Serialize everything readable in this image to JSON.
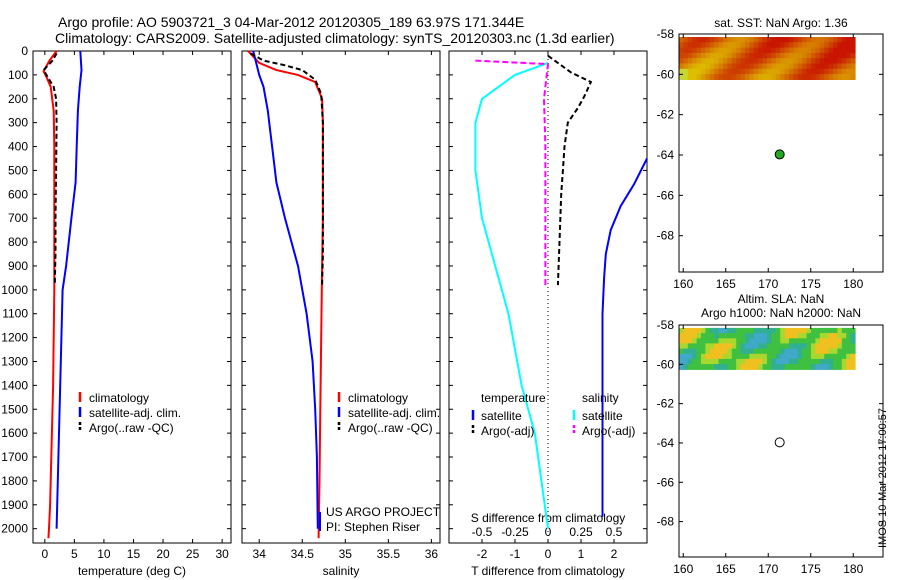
{
  "title_line1": "Argo profile: AO 5903721_3 04-Mar-2012 20120305_189 63.97S 171.344E",
  "title_line2": "Climatology: CARS2009. Satellite-adjusted climatology: synTS_20120303.nc (1.3d earlier)",
  "timestamp": "IMOS 10-Mar-2012 17:00:57",
  "colors": {
    "climatology": "#ff0000",
    "satellite": "#0000ff",
    "argo": "#000000",
    "sal_satellite": "#00ffff",
    "sal_argo": "#ff00ff"
  },
  "chart_data": [
    {
      "type": "line",
      "xlabel": "temperature (deg C)",
      "ylabel": "",
      "xlim": [
        -2,
        31.5
      ],
      "ylim": [
        2060,
        0
      ],
      "xticks": [
        "0",
        "5",
        "10",
        "15",
        "20",
        "25",
        "30"
      ],
      "yticks": [
        "0",
        "100",
        "200",
        "300",
        "400",
        "500",
        "600",
        "700",
        "800",
        "900",
        "1000",
        "1100",
        "1200",
        "1300",
        "1400",
        "1500",
        "1600",
        "1700",
        "1800",
        "1900",
        "2000"
      ],
      "legend": [
        "climatology",
        "satellite-adj. clim.",
        "Argo(..raw -QC)"
      ],
      "legend_placement": "lower-center",
      "series": [
        {
          "name": "climatology",
          "x": [
            2.0,
            0.8,
            -0.2,
            0.3,
            1.0,
            1.5,
            1.6,
            1.6,
            1.6,
            1.6,
            1.6,
            1.5,
            1.4,
            1.3,
            1.2,
            1.1,
            1.0,
            0.9,
            0.7,
            0.6
          ],
          "y": [
            0,
            40,
            85,
            110,
            150,
            250,
            400,
            600,
            800,
            900,
            1000,
            1200,
            1400,
            1500,
            1600,
            1700,
            1800,
            1900,
            2000,
            2040
          ]
        },
        {
          "name": "satellite-adj. clim.",
          "x": [
            6.0,
            6.2,
            5.9,
            5.6,
            5.4,
            5.2,
            4.5,
            3.6,
            3.0,
            2.8,
            2.6,
            2.4,
            2.3,
            2.2,
            2.1,
            2.0
          ],
          "y": [
            0,
            80,
            150,
            250,
            400,
            550,
            700,
            900,
            1000,
            1200,
            1400,
            1600,
            1700,
            1800,
            1900,
            2000
          ]
        },
        {
          "name": "Argo(..raw -QC)",
          "x": [
            2.0,
            1.3,
            -0.2,
            0.5,
            1.5,
            1.9,
            2.0,
            1.9,
            1.8,
            1.8,
            1.7,
            1.7
          ],
          "y": [
            10,
            40,
            80,
            110,
            150,
            200,
            300,
            500,
            700,
            850,
            950,
            980
          ]
        }
      ]
    },
    {
      "type": "line",
      "xlabel": "salinity",
      "ylabel": "",
      "xlim": [
        33.8,
        36.1
      ],
      "ylim": [
        2060,
        0
      ],
      "xticks": [
        "34",
        "34.5",
        "35",
        "35.5",
        "36"
      ],
      "legend": [
        "climatology",
        "satellite-adj. clim.",
        "Argo(..raw -QC)"
      ],
      "legend_placement": "lower-right",
      "annotations": [
        "US ARGO PROJECT",
        "PI: Stephen Riser"
      ],
      "series": [
        {
          "name": "climatology",
          "x": [
            33.87,
            34.0,
            34.2,
            34.45,
            34.65,
            34.73,
            34.74,
            34.74,
            34.74,
            34.73,
            34.72,
            34.71,
            34.7,
            34.69
          ],
          "y": [
            0,
            50,
            80,
            100,
            130,
            200,
            300,
            500,
            700,
            900,
            1200,
            1500,
            1800,
            2040
          ]
        },
        {
          "name": "satellite-adj. clim.",
          "x": [
            33.93,
            34.0,
            34.05,
            34.1,
            34.15,
            34.2,
            34.3,
            34.45,
            34.55,
            34.62,
            34.65,
            34.67,
            34.68
          ],
          "y": [
            0,
            100,
            150,
            250,
            400,
            550,
            700,
            900,
            1100,
            1300,
            1500,
            1700,
            2000
          ]
        },
        {
          "name": "Argo(..raw -QC)",
          "x": [
            33.9,
            34.05,
            34.3,
            34.5,
            34.65,
            34.72,
            34.74,
            34.74,
            34.74,
            34.73
          ],
          "y": [
            10,
            40,
            60,
            80,
            120,
            180,
            300,
            600,
            850,
            980
          ]
        }
      ]
    },
    {
      "type": "line",
      "xlabel": "T difference from climatology",
      "xlabel2": "S difference from climatology",
      "xlim": [
        -3,
        3
      ],
      "x2lim": [
        -0.75,
        0.75
      ],
      "ylim": [
        2060,
        0
      ],
      "xticks": [
        "-2",
        "-1",
        "0",
        "1",
        "2"
      ],
      "x2ticks": [
        "-0.5",
        "-0.25",
        "0",
        "0.25",
        "0.5"
      ],
      "legend_headers": [
        "temperature",
        "salinity"
      ],
      "legend": [
        "satellite",
        "Argo(-adj)",
        "satellite",
        "Argo(-adj)"
      ],
      "legend_placement": "lower-center",
      "series": [
        {
          "name": "satellite",
          "x": [
            3.0,
            2.6,
            2.2,
            1.9,
            1.75,
            1.7,
            1.65,
            1.65,
            1.65,
            1.65,
            1.65
          ],
          "y": [
            450,
            560,
            650,
            750,
            850,
            950,
            1100,
            1300,
            1500,
            1700,
            1950
          ]
        },
        {
          "name": "Argo(-adj)",
          "x": [
            0.0,
            0.4,
            0.7,
            1.3,
            1.1,
            0.9,
            0.6,
            0.5,
            0.45,
            0.4,
            0.35,
            0.3
          ],
          "y": [
            20,
            60,
            90,
            130,
            190,
            240,
            300,
            400,
            500,
            600,
            800,
            980
          ]
        },
        {
          "name": "satellite",
          "x": [
            0.0,
            -0.25,
            -0.5,
            -0.55,
            -0.55,
            -0.5,
            -0.4,
            -0.3,
            -0.2,
            -0.1,
            -0.05,
            0.0
          ],
          "y": [
            50,
            100,
            200,
            300,
            500,
            700,
            900,
            1100,
            1400,
            1600,
            1800,
            2000
          ]
        },
        {
          "name": "Argo(-adj)",
          "x": [
            -0.55,
            0.0,
            -0.03,
            -0.02,
            -0.02,
            -0.02
          ],
          "y": [
            40,
            55,
            200,
            400,
            700,
            980
          ]
        }
      ]
    },
    {
      "type": "heatmap",
      "title": "sat. SST: NaN Argo: 1.36",
      "xlim": [
        159.5,
        183.5
      ],
      "ylim": [
        -69.8,
        -58
      ],
      "xticks": [
        "160",
        "165",
        "170",
        "175",
        "180"
      ],
      "yticks": [
        "-58",
        "-60",
        "-62",
        "-64",
        "-66",
        "-68"
      ],
      "marker": {
        "lon": 171.344,
        "lat": -63.97,
        "fill": "#22aa22"
      }
    },
    {
      "type": "heatmap",
      "title": "Altim. SLA: NaN",
      "subtitle": "Argo h1000: NaN h2000: NaN",
      "xlim": [
        159.5,
        183.5
      ],
      "ylim": [
        -69.8,
        -58
      ],
      "xticks": [
        "160",
        "165",
        "170",
        "175",
        "180"
      ],
      "yticks": [
        "-58",
        "-60",
        "-62",
        "-64",
        "-66",
        "-68"
      ],
      "marker": {
        "lon": 171.344,
        "lat": -63.97,
        "fill": "#ffffff"
      }
    }
  ]
}
